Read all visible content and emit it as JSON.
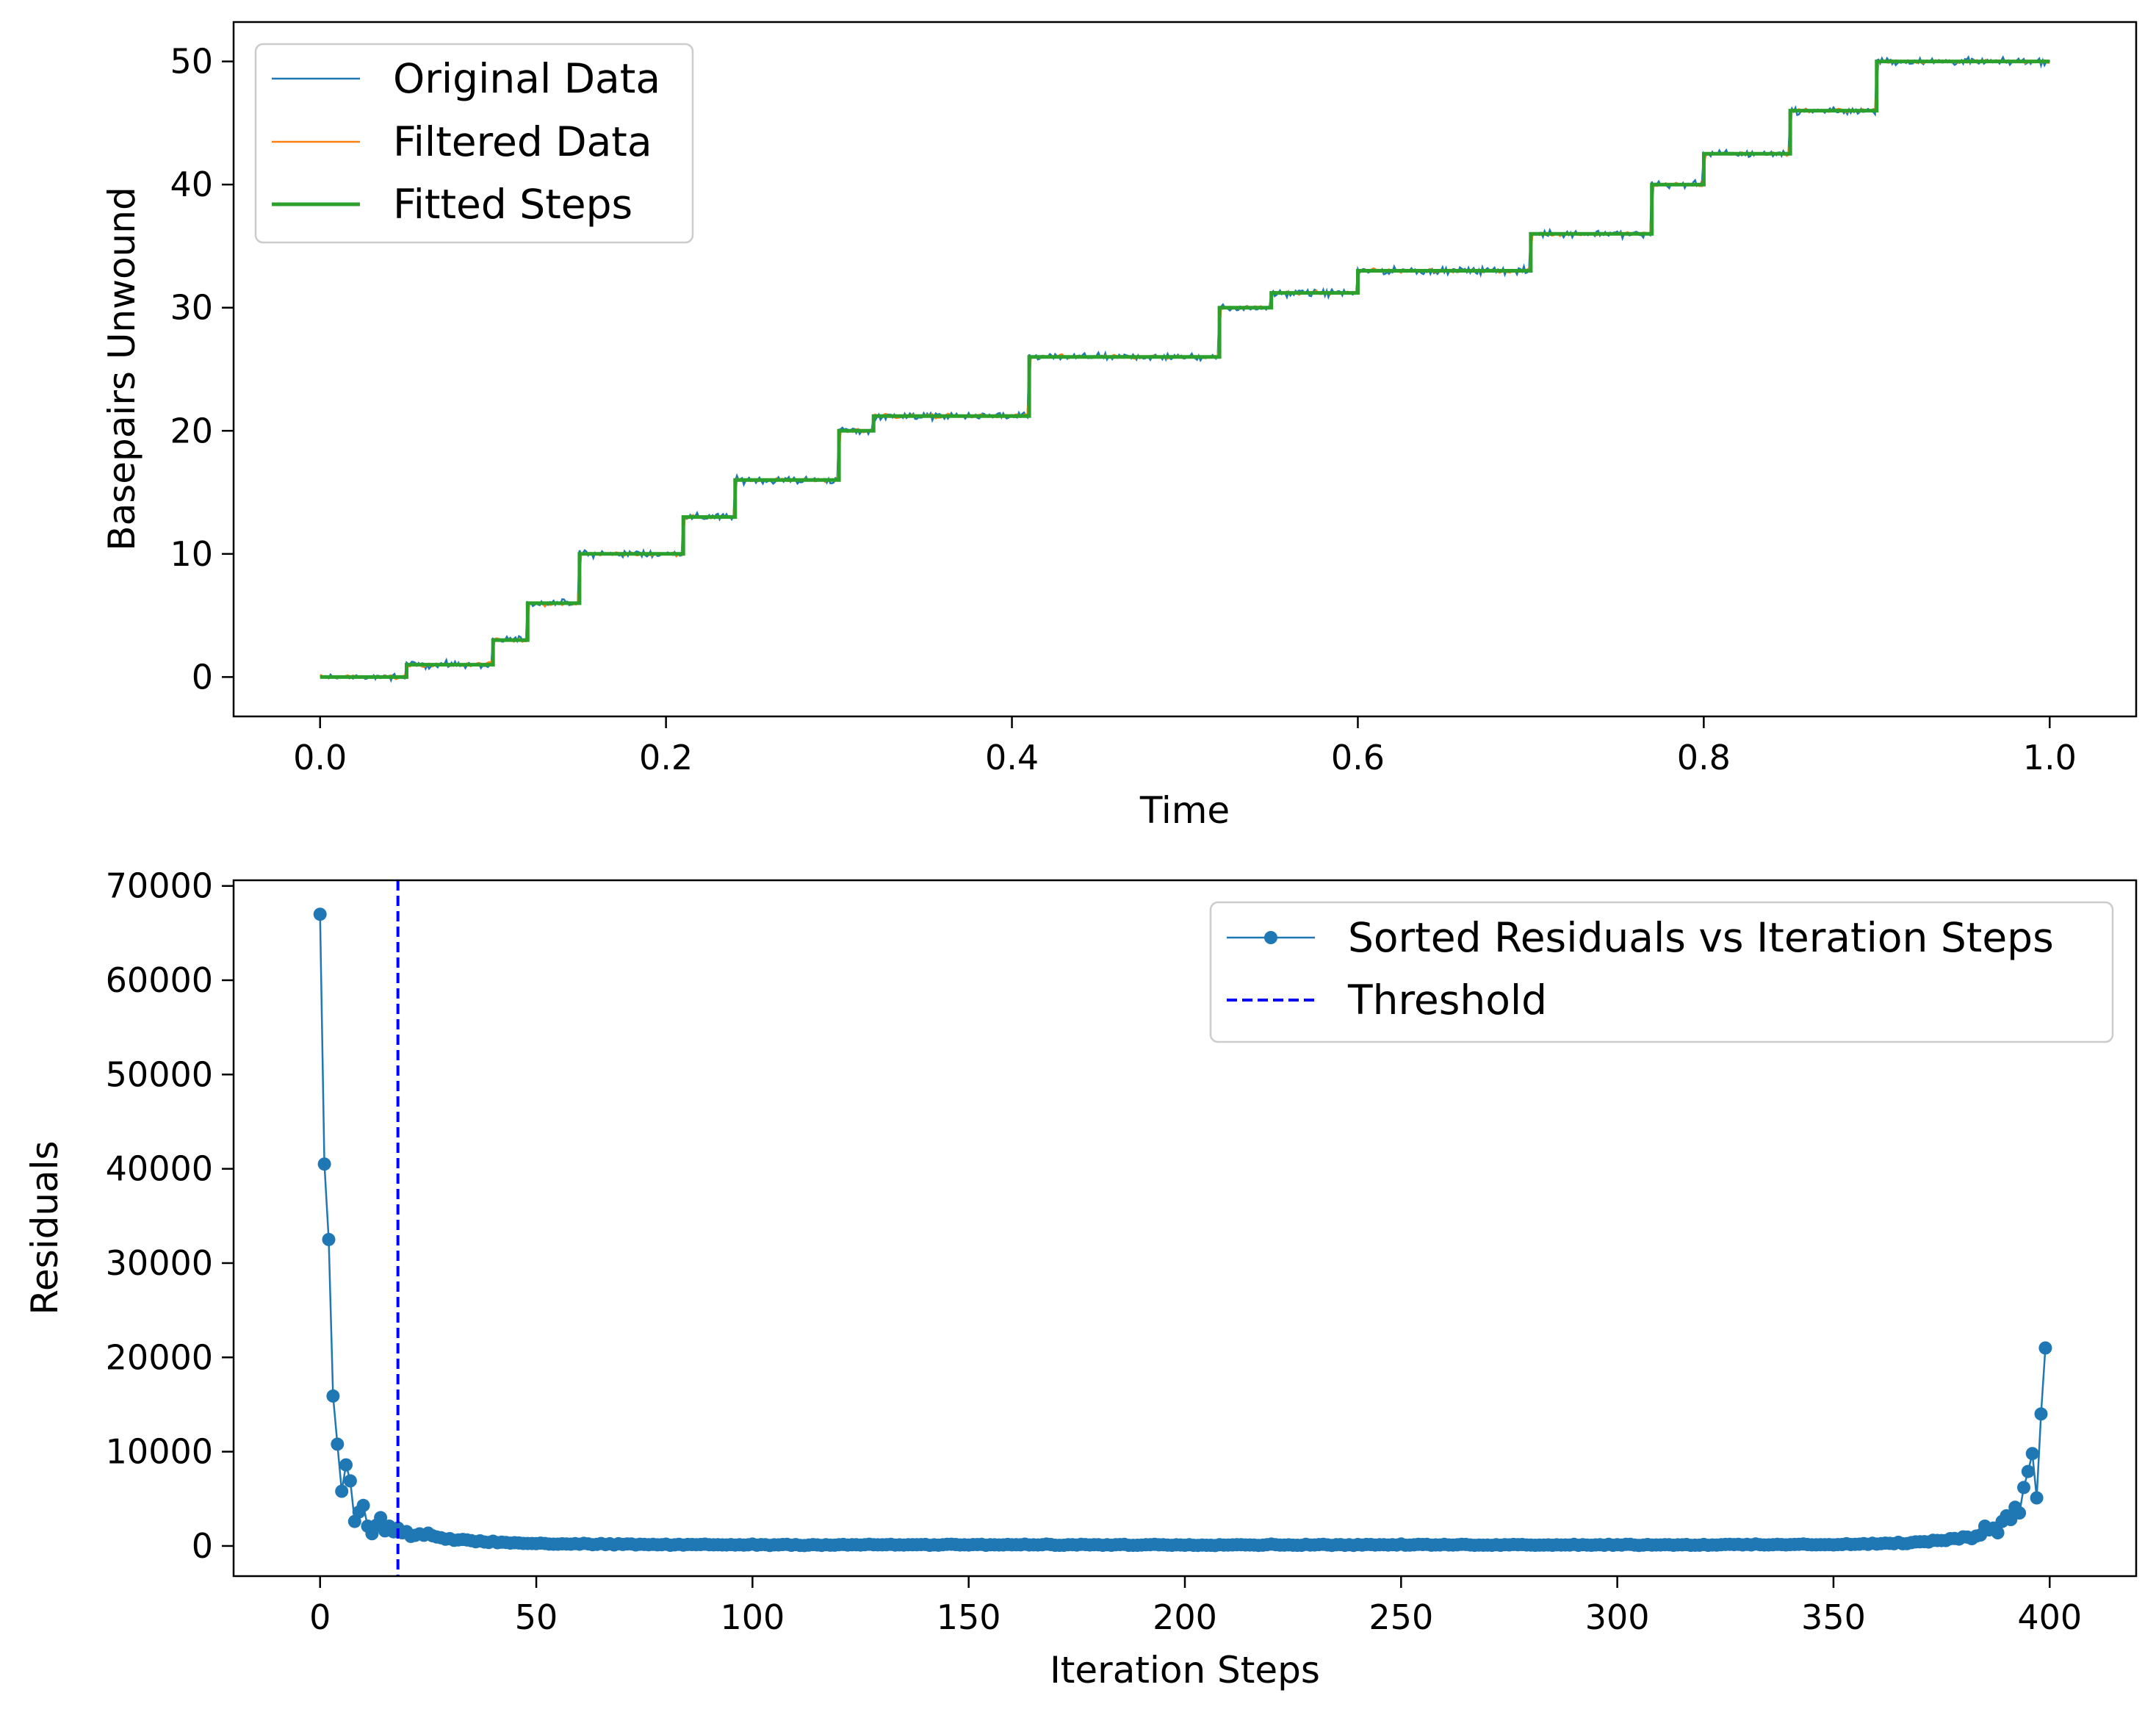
{
  "chart_data": [
    {
      "type": "line",
      "title": "",
      "xlabel": "Time",
      "ylabel": "Basepairs Unwound",
      "xlim": [
        -0.05,
        1.05
      ],
      "ylim": [
        -3.2,
        53.2
      ],
      "xticks": [
        0.0,
        0.2,
        0.4,
        0.6,
        0.8,
        1.0
      ],
      "xtick_labels": [
        "0.0",
        "0.2",
        "0.4",
        "0.6",
        "0.8",
        "1.0"
      ],
      "yticks": [
        0,
        10,
        20,
        30,
        40,
        50
      ],
      "ytick_labels": [
        "0",
        "10",
        "20",
        "30",
        "40",
        "50"
      ],
      "legend_position": "upper-left",
      "series": [
        {
          "name": "Original Data",
          "color": "#1f77b4",
          "noise_amplitude": 0.35
        },
        {
          "name": "Filtered Data",
          "color": "#ff7f0e",
          "noise_amplitude": 0.3
        },
        {
          "name": "Fitted Steps",
          "color": "#2ca02c",
          "step_times": [
            0.0,
            0.05,
            0.1,
            0.12,
            0.15,
            0.21,
            0.24,
            0.3,
            0.32,
            0.41,
            0.52,
            0.55,
            0.6,
            0.7,
            0.77,
            0.8,
            0.85,
            0.9,
            1.0
          ],
          "step_levels": [
            0,
            1,
            3,
            6,
            10,
            13,
            16,
            20,
            21.2,
            26,
            30,
            31.2,
            33,
            36,
            40,
            42.5,
            46,
            50
          ]
        }
      ]
    },
    {
      "type": "line",
      "title": "",
      "xlabel": "Iteration Steps",
      "ylabel": "Residuals",
      "xlim": [
        -20,
        420
      ],
      "ylim": [
        -3200,
        70600
      ],
      "xticks": [
        0,
        50,
        100,
        150,
        200,
        250,
        300,
        350,
        400
      ],
      "xtick_labels": [
        "0",
        "50",
        "100",
        "150",
        "200",
        "250",
        "300",
        "350",
        "400"
      ],
      "yticks": [
        0,
        10000,
        20000,
        30000,
        40000,
        50000,
        60000,
        70000
      ],
      "ytick_labels": [
        "0",
        "10000",
        "20000",
        "30000",
        "40000",
        "50000",
        "60000",
        "70000"
      ],
      "legend_position": "upper-right",
      "threshold": {
        "name": "Threshold",
        "x": 18,
        "color": "#0000ff"
      },
      "series": [
        {
          "name": "Sorted Residuals vs Iteration Steps",
          "color": "#1f77b4",
          "n_points": 400,
          "head_values": [
            67000,
            40500,
            32500,
            15900,
            10800,
            5800,
            8600,
            6900,
            2600,
            3600,
            4300,
            2100,
            1300,
            2200,
            3000,
            1600,
            2100,
            1500,
            1900,
            1400
          ],
          "tail_values": [
            2100,
            1700,
            1900,
            1400,
            2600,
            3200,
            2800,
            4100,
            3500,
            6200,
            7900,
            9800,
            5100,
            14000,
            21000
          ],
          "baseline_value": 200
        }
      ]
    }
  ]
}
